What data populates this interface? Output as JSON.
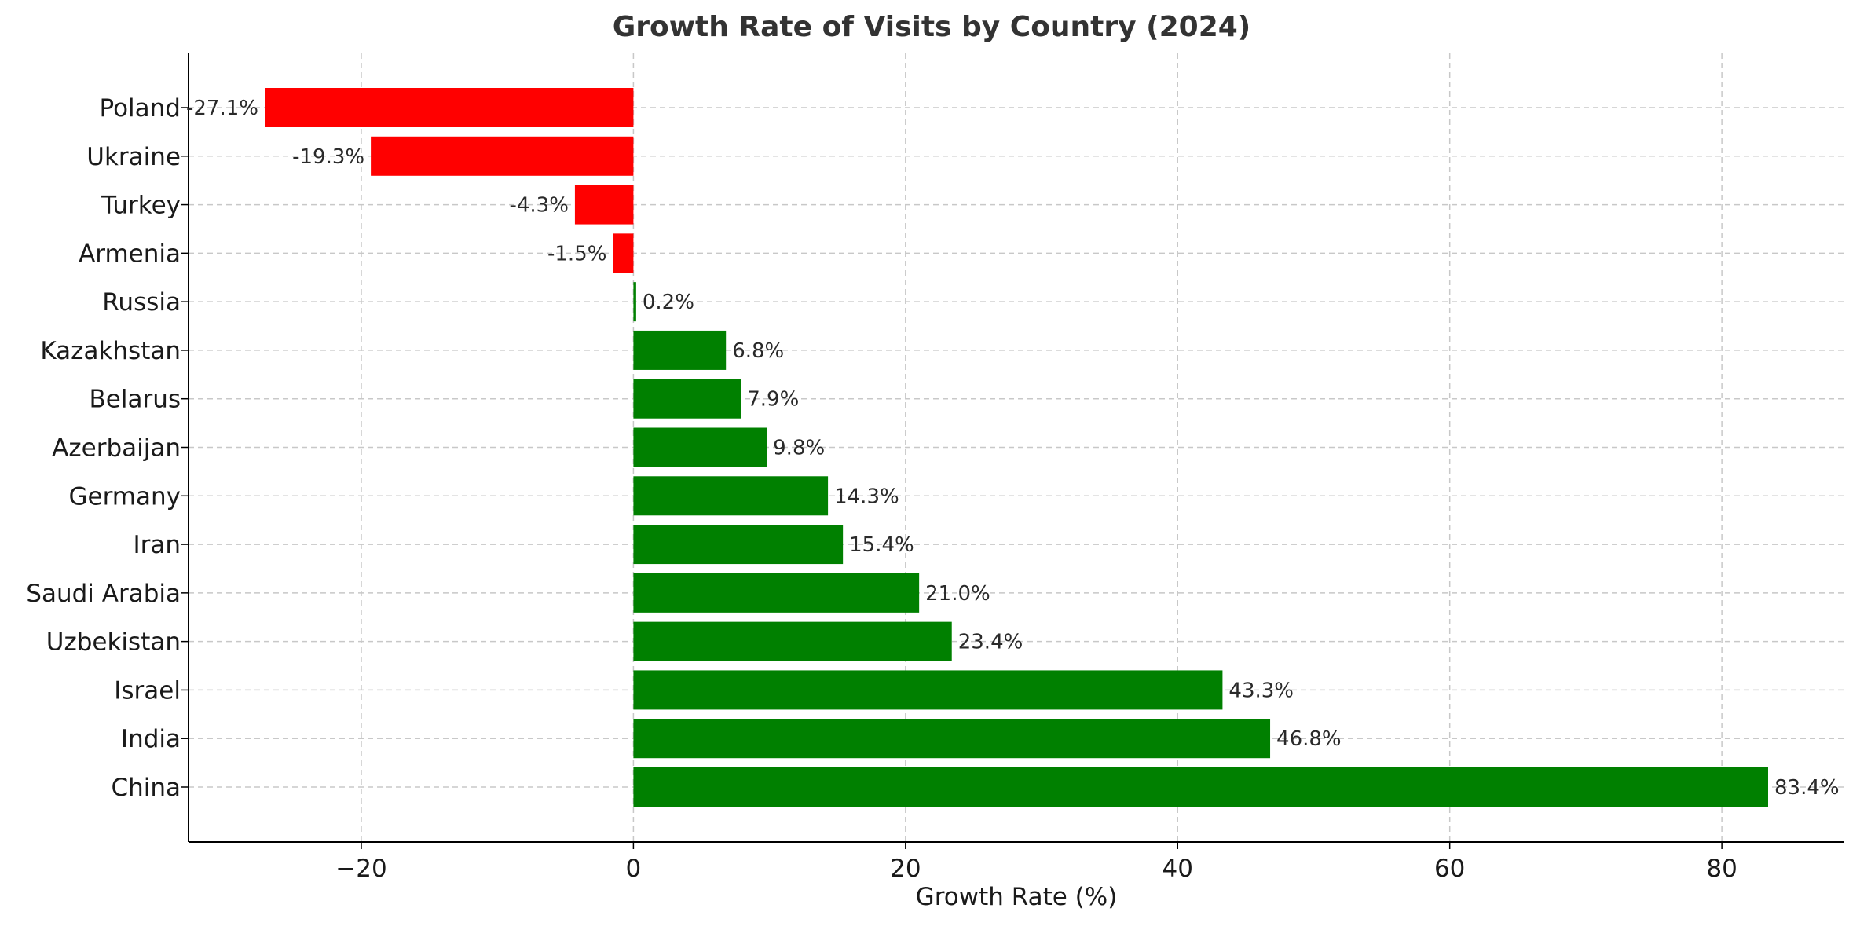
{
  "chart_data": {
    "type": "bar",
    "orientation": "horizontal",
    "title": "Growth Rate of Visits by Country (2024)",
    "xlabel": "Growth Rate (%)",
    "ylabel": "",
    "xlim": [
      -32.7,
      89.0
    ],
    "xticks": [
      -20,
      0,
      20,
      40,
      60,
      80
    ],
    "xtick_labels": [
      "−20",
      "0",
      "20",
      "40",
      "60",
      "80"
    ],
    "grid": true,
    "legend": "none",
    "categories": [
      "Poland",
      "Ukraine",
      "Turkey",
      "Armenia",
      "Russia",
      "Kazakhstan",
      "Belarus",
      "Azerbaijan",
      "Germany",
      "Iran",
      "Saudi Arabia",
      "Uzbekistan",
      "Israel",
      "India",
      "China"
    ],
    "values": [
      -27.1,
      -19.3,
      -4.3,
      -1.5,
      0.2,
      6.8,
      7.9,
      9.8,
      14.3,
      15.4,
      21.0,
      23.4,
      43.3,
      46.8,
      83.4
    ],
    "value_labels": [
      "-27.1%",
      "-19.3%",
      "-4.3%",
      "-1.5%",
      "0.2%",
      "6.8%",
      "7.9%",
      "9.8%",
      "14.3%",
      "15.4%",
      "21.0%",
      "23.4%",
      "43.3%",
      "46.8%",
      "83.4%"
    ],
    "colors": {
      "negative": "#ff0000",
      "positive": "#008000",
      "grid": "#c8c8c8",
      "axis": "#000000",
      "title": "#333333",
      "text": "#1a1a1a"
    }
  }
}
